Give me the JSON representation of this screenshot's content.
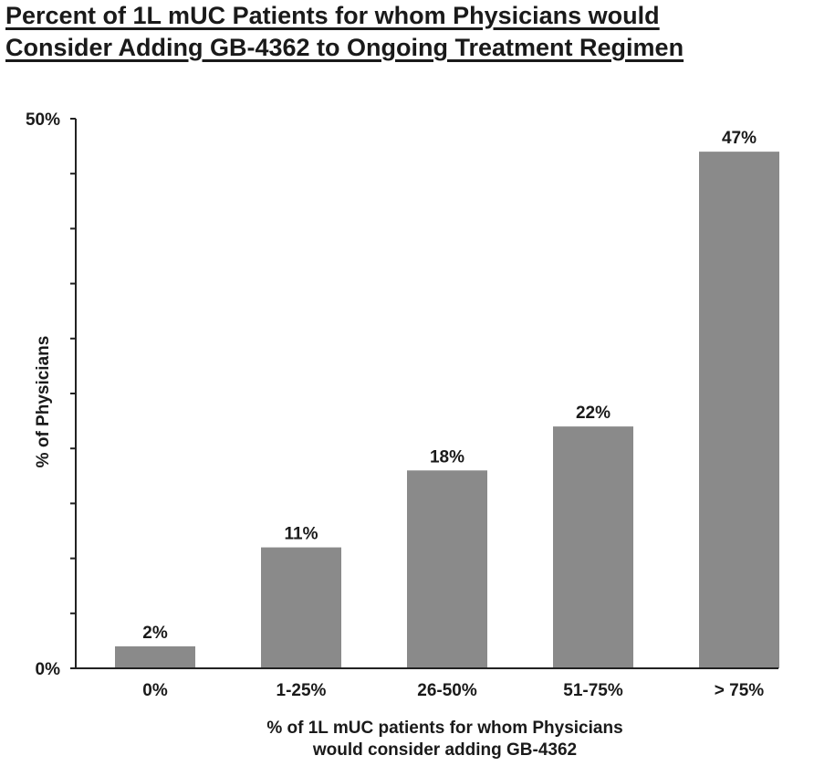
{
  "chart_data": {
    "type": "bar",
    "title_lines": [
      "Percent of 1L mUC Patients for whom Physicians would",
      "Consider Adding GB-4362 to Ongoing Treatment Regimen"
    ],
    "categories": [
      "0%",
      "1-25%",
      "26-50%",
      "51-75%",
      "> 75%"
    ],
    "values": [
      2,
      11,
      18,
      22,
      47
    ],
    "data_labels": [
      "2%",
      "11%",
      "18%",
      "22%",
      "47%"
    ],
    "ylabel": "% of Physicians",
    "xlabel_lines": [
      "% of 1L mUC patients for whom Physicians",
      "would consider adding GB-4362"
    ],
    "ylim": [
      0,
      50
    ],
    "y_tick_labels": [
      "0%",
      "50%"
    ],
    "y_minor_tick_count": 10,
    "bar_color": "#8a8a8a",
    "grid": false
  }
}
